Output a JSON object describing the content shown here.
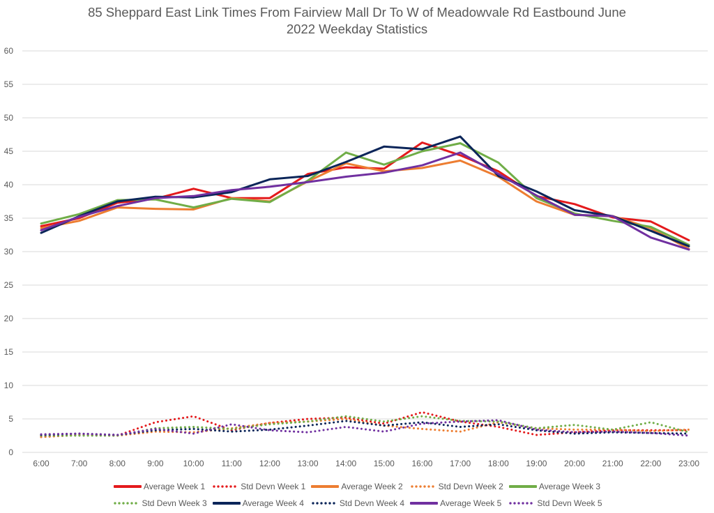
{
  "chart_data": {
    "type": "line",
    "title_lines": [
      "85 Sheppard East Link Times From Fairview Mall Dr To W of Meadowvale Rd Eastbound June",
      "2022 Weekday Statistics"
    ],
    "xlabel": "",
    "ylabel": "",
    "ylim": [
      0,
      60
    ],
    "yticks": [
      "0",
      "5",
      "10",
      "15",
      "20",
      "25",
      "30",
      "35",
      "40",
      "45",
      "50",
      "55",
      "60"
    ],
    "ytick_values": [
      0,
      5,
      10,
      15,
      20,
      25,
      30,
      35,
      40,
      45,
      50,
      55,
      60
    ],
    "grid": true,
    "legend_position": "bottom",
    "categories": [
      "6:00",
      "7:00",
      "8:00",
      "9:00",
      "10:00",
      "11:00",
      "12:00",
      "13:00",
      "14:00",
      "15:00",
      "16:00",
      "17:00",
      "18:00",
      "19:00",
      "20:00",
      "21:00",
      "22:00",
      "23:00"
    ],
    "series": [
      {
        "name": "Average Week 1",
        "style": "solid",
        "color": "#E41A1C",
        "values": [
          33.8,
          35.0,
          37.3,
          37.9,
          39.4,
          38.0,
          38.0,
          41.6,
          42.6,
          42.4,
          46.3,
          44.4,
          42.0,
          38.3,
          37.1,
          35.1,
          34.5,
          31.7
        ]
      },
      {
        "name": "Std Devn Week 1",
        "style": "dotted",
        "color": "#E41A1C",
        "values": [
          2.3,
          2.6,
          2.5,
          4.5,
          5.4,
          3.3,
          4.4,
          5.0,
          5.2,
          4.3,
          6.0,
          4.6,
          3.8,
          2.6,
          3.0,
          3.3,
          3.3,
          3.3
        ]
      },
      {
        "name": "Average Week 2",
        "style": "solid",
        "color": "#ED7D31",
        "values": [
          33.5,
          34.6,
          36.6,
          36.4,
          36.3,
          38.0,
          37.5,
          40.5,
          43.2,
          42.0,
          42.5,
          43.6,
          41.2,
          37.5,
          35.5,
          35.3,
          33.5,
          30.4
        ]
      },
      {
        "name": "Std Devn Week 2",
        "style": "dotted",
        "color": "#ED7D31",
        "values": [
          2.3,
          2.6,
          2.5,
          3.1,
          3.0,
          3.6,
          4.4,
          4.6,
          5.0,
          4.0,
          3.5,
          3.1,
          4.5,
          3.6,
          3.4,
          3.4,
          3.2,
          3.4
        ]
      },
      {
        "name": "Average Week 3",
        "style": "solid",
        "color": "#70AD47",
        "values": [
          34.2,
          35.6,
          37.7,
          37.8,
          36.6,
          37.9,
          37.4,
          40.6,
          44.8,
          43.0,
          45.0,
          46.2,
          43.3,
          38.0,
          35.7,
          34.6,
          33.7,
          31.0
        ]
      },
      {
        "name": "Std Devn Week 3",
        "style": "dotted",
        "color": "#70AD47",
        "values": [
          2.5,
          2.5,
          2.5,
          3.6,
          3.8,
          3.5,
          4.2,
          4.6,
          5.4,
          4.6,
          5.4,
          4.7,
          4.6,
          3.6,
          4.1,
          3.4,
          4.5,
          3.0
        ]
      },
      {
        "name": "Average Week 4",
        "style": "solid",
        "color": "#0B2559",
        "values": [
          32.8,
          35.3,
          37.5,
          38.2,
          38.1,
          38.9,
          40.8,
          41.3,
          43.4,
          45.7,
          45.3,
          47.2,
          41.3,
          39.0,
          36.2,
          35.3,
          33.1,
          30.8
        ]
      },
      {
        "name": "Std Devn Week 4",
        "style": "dotted",
        "color": "#0B2559",
        "values": [
          2.6,
          2.8,
          2.6,
          3.3,
          3.5,
          3.1,
          3.4,
          4.0,
          4.7,
          4.0,
          4.5,
          3.8,
          4.2,
          3.3,
          2.8,
          3.0,
          2.9,
          2.8
        ]
      },
      {
        "name": "Average Week 5",
        "style": "solid",
        "color": "#7030A0",
        "values": [
          33.2,
          35.2,
          36.8,
          38.0,
          38.3,
          39.2,
          39.7,
          40.4,
          41.2,
          41.8,
          42.9,
          44.8,
          41.6,
          38.4,
          35.5,
          35.3,
          32.1,
          30.3
        ]
      },
      {
        "name": "Std Devn Week 5",
        "style": "dotted",
        "color": "#7030A0",
        "values": [
          2.7,
          2.8,
          2.6,
          3.5,
          2.8,
          4.2,
          3.3,
          3.0,
          3.8,
          3.1,
          4.3,
          4.6,
          4.8,
          3.4,
          3.0,
          3.1,
          2.9,
          2.5
        ]
      }
    ],
    "legend_rows": [
      [
        0,
        1,
        2,
        3,
        4
      ],
      [
        5,
        6,
        7,
        8,
        9
      ]
    ]
  }
}
